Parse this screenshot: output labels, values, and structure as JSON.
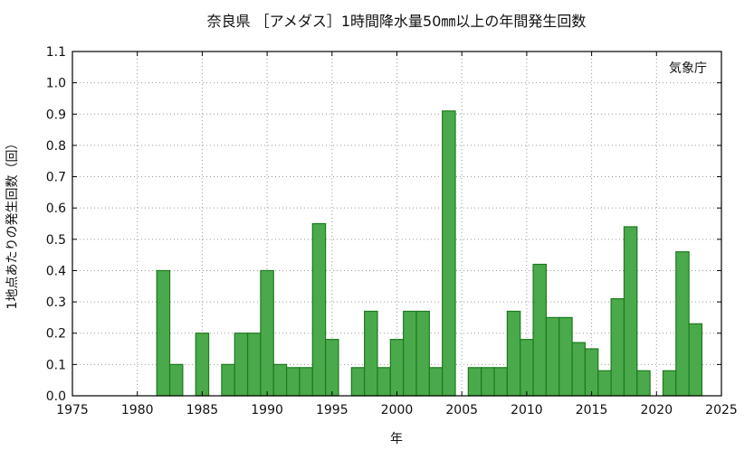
{
  "chart_data": {
    "type": "bar",
    "title": "奈良県 ［アメダス］1時間降水量50㎜以上の年間発生回数",
    "xlabel": "年",
    "ylabel": "1地点あたりの発生回数（回）",
    "source_label": "気象庁",
    "xlim": [
      1975,
      2025
    ],
    "ylim": [
      0.0,
      1.1
    ],
    "x_ticks": [
      1975,
      1980,
      1985,
      1990,
      1995,
      2000,
      2005,
      2010,
      2015,
      2020,
      2025
    ],
    "y_ticks": [
      "0.0",
      "0.1",
      "0.2",
      "0.3",
      "0.4",
      "0.5",
      "0.6",
      "0.7",
      "0.8",
      "0.9",
      "1.0",
      "1.1"
    ],
    "grid": true,
    "colors": {
      "bar_fill": "#4aa94a",
      "bar_edge": "#1e7a1e"
    },
    "years": [
      1976,
      1977,
      1978,
      1979,
      1980,
      1981,
      1982,
      1983,
      1984,
      1985,
      1986,
      1987,
      1988,
      1989,
      1990,
      1991,
      1992,
      1993,
      1994,
      1995,
      1996,
      1997,
      1998,
      1999,
      2000,
      2001,
      2002,
      2003,
      2004,
      2005,
      2006,
      2007,
      2008,
      2009,
      2010,
      2011,
      2012,
      2013,
      2014,
      2015,
      2016,
      2017,
      2018,
      2019,
      2020,
      2021,
      2022,
      2023
    ],
    "values": [
      0,
      0,
      0,
      0,
      0,
      0,
      0.4,
      0.1,
      0,
      0.2,
      0,
      0.1,
      0.2,
      0.2,
      0.4,
      0.1,
      0.09,
      0.09,
      0.55,
      0.18,
      0,
      0.09,
      0.27,
      0.09,
      0.18,
      0.27,
      0.27,
      0.09,
      0.91,
      0,
      0.09,
      0.09,
      0.09,
      0.27,
      0.18,
      0.42,
      0.25,
      0.25,
      0.17,
      0.15,
      0.08,
      0.31,
      0.54,
      0.08,
      0,
      0.08,
      0.46,
      0.23
    ]
  }
}
